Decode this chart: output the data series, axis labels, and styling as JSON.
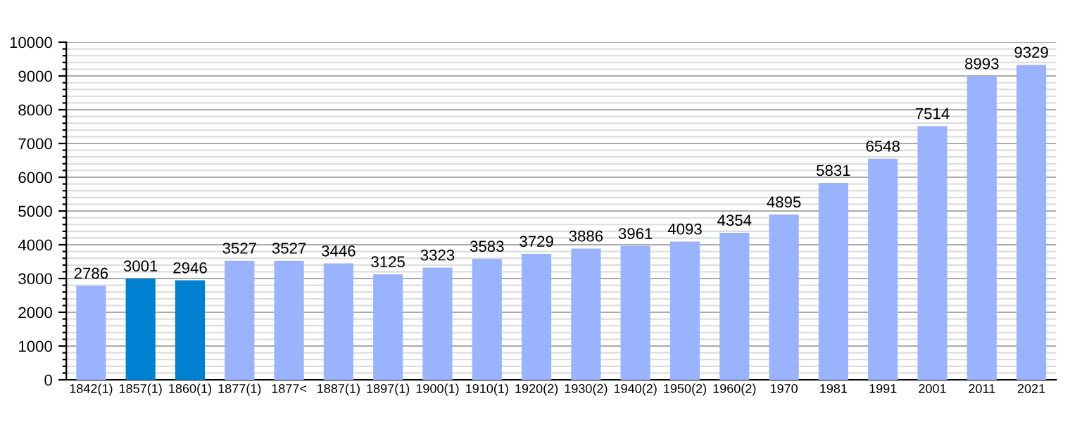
{
  "chart_data": {
    "type": "bar",
    "categories": [
      "1842(1)",
      "1857(1)",
      "1860(1)",
      "1877(1)",
      "1877<",
      "1887(1)",
      "1897(1)",
      "1900(1)",
      "1910(1)",
      "1920(2)",
      "1930(2)",
      "1940(2)",
      "1950(2)",
      "1960(2)",
      "1970",
      "1981",
      "1991",
      "2001",
      "2011",
      "2021"
    ],
    "values": [
      2786,
      3001,
      2946,
      3527,
      3527,
      3446,
      3125,
      3323,
      3583,
      3729,
      3886,
      3961,
      4093,
      4354,
      4895,
      5831,
      6548,
      7514,
      8993,
      9329
    ],
    "colors": [
      "#99b3ff",
      "#0080d0",
      "#0080d0",
      "#99b3ff",
      "#99b3ff",
      "#99b3ff",
      "#99b3ff",
      "#99b3ff",
      "#99b3ff",
      "#99b3ff",
      "#99b3ff",
      "#99b3ff",
      "#99b3ff",
      "#99b3ff",
      "#99b3ff",
      "#99b3ff",
      "#99b3ff",
      "#99b3ff",
      "#99b3ff",
      "#99b3ff"
    ],
    "ylim": [
      0,
      10000
    ],
    "yticks": [
      0,
      {
        "value": 200,
        "label": null
      },
      {
        "value": 400,
        "label": null
      },
      {
        "value": 600,
        "label": null
      },
      {
        "value": 800,
        "label": null
      },
      1000,
      {
        "value": 1200,
        "label": null
      },
      {
        "value": 1400,
        "label": null
      },
      {
        "value": 1600,
        "label": null
      },
      {
        "value": 1800,
        "label": null
      },
      2000,
      {
        "value": 2200,
        "label": null
      },
      {
        "value": 2400,
        "label": null
      },
      {
        "value": 2600,
        "label": null
      },
      {
        "value": 2800,
        "label": null
      },
      3000,
      {
        "value": 3200,
        "label": null
      },
      {
        "value": 3400,
        "label": null
      },
      {
        "value": 3600,
        "label": null
      },
      {
        "value": 3800,
        "label": null
      },
      4000,
      {
        "value": 4200,
        "label": null
      },
      {
        "value": 4400,
        "label": null
      },
      {
        "value": 4600,
        "label": null
      },
      {
        "value": 4800,
        "label": null
      },
      5000,
      {
        "value": 5200,
        "label": null
      },
      {
        "value": 5400,
        "label": null
      },
      {
        "value": 5600,
        "label": null
      },
      {
        "value": 5800,
        "label": null
      },
      6000,
      {
        "value": 6200,
        "label": null
      },
      {
        "value": 6400,
        "label": null
      },
      {
        "value": 6600,
        "label": null
      },
      {
        "value": 6800,
        "label": null
      },
      7000,
      {
        "value": 7200,
        "label": null
      },
      {
        "value": 7400,
        "label": null
      },
      {
        "value": 7600,
        "label": null
      },
      {
        "value": 7800,
        "label": null
      },
      8000,
      {
        "value": 8200,
        "label": null
      },
      {
        "value": 8400,
        "label": null
      },
      {
        "value": 8600,
        "label": null
      },
      {
        "value": 8800,
        "label": null
      },
      9000,
      {
        "value": 9200,
        "label": null
      },
      {
        "value": 9400,
        "label": null
      },
      {
        "value": 9600,
        "label": null
      },
      {
        "value": 9800,
        "label": null
      },
      10000
    ],
    "grid": "y",
    "data_labels": true
  }
}
